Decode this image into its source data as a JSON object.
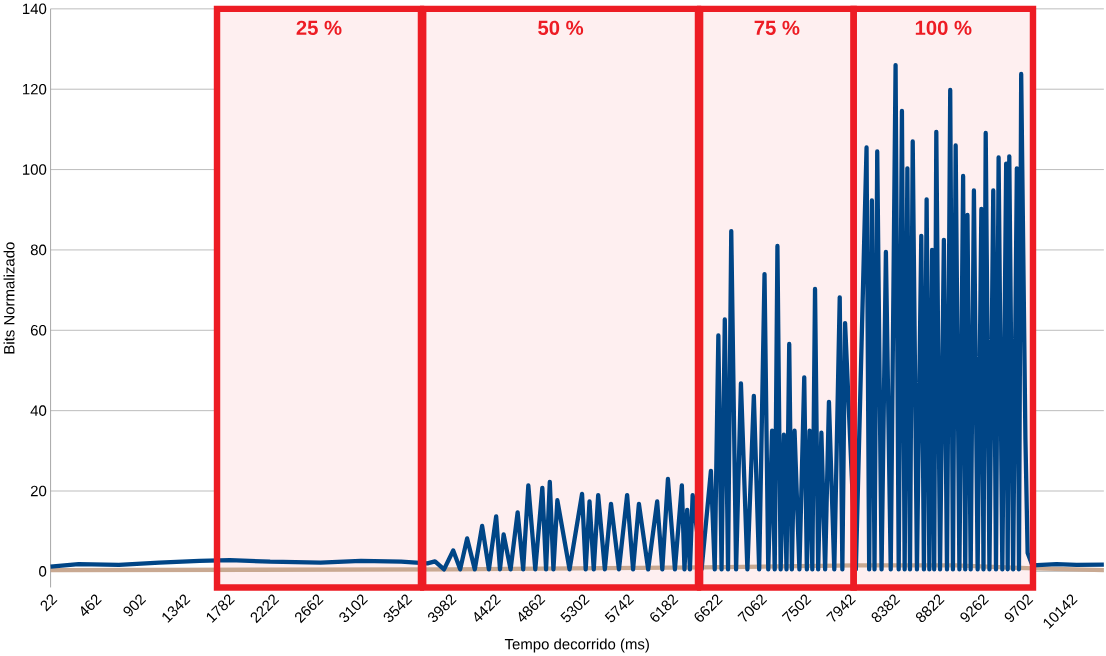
{
  "chart_data": {
    "type": "line",
    "xlabel": "Tempo decorrido (ms)",
    "ylabel": "Bits Normalizado",
    "xlim": [
      22,
      10470
    ],
    "ylim": [
      -4,
      140
    ],
    "xticks": [
      22,
      462,
      902,
      1342,
      1782,
      2222,
      2662,
      3102,
      3542,
      3982,
      4422,
      4862,
      5302,
      5742,
      6182,
      6622,
      7062,
      7502,
      7942,
      8382,
      8822,
      9262,
      9702,
      10142
    ],
    "yticks": [
      0,
      20,
      40,
      60,
      80,
      100,
      120,
      140
    ],
    "grid": "y",
    "marker": "none",
    "line_style": "solid",
    "series": [
      {
        "color": "#c9a992",
        "x": [
          22,
          4000,
          6500,
          8000,
          9000,
          9700,
          10470
        ],
        "values": [
          0.3,
          0.5,
          1,
          1.5,
          1.5,
          0.8,
          0.3
        ]
      },
      {
        "color": "#004586",
        "x": [
          22,
          300,
          700,
          1100,
          1500,
          1800,
          2200,
          2700,
          3100,
          3500,
          3760,
          3835,
          3925,
          4016,
          4085,
          4154,
          4230,
          4303,
          4370,
          4442,
          4480,
          4516,
          4585,
          4655,
          4710,
          4761,
          4830,
          4900,
          4937,
          4974,
          5010,
          5049,
          5170,
          5294,
          5330,
          5368,
          5410,
          5454,
          5520,
          5581,
          5660,
          5741,
          5800,
          5858,
          5950,
          6039,
          6090,
          6146,
          6215,
          6284,
          6310,
          6337,
          6364,
          6391,
          6480,
          6572,
          6610,
          6646,
          6678,
          6710,
          6742,
          6774,
          6822,
          6870,
          6934,
          6998,
          7051,
          7104,
          7141,
          7179,
          7205,
          7232,
          7264,
          7296,
          7322,
          7349,
          7375,
          7402,
          7450,
          7498,
          7524,
          7551,
          7578,
          7605,
          7636,
          7668,
          7705,
          7743,
          7796,
          7850,
          7876,
          7903,
          8010,
          8116,
          8142,
          8169,
          8195,
          8222,
          8265,
          8308,
          8356,
          8404,
          8435,
          8467,
          8494,
          8521,
          8547,
          8574,
          8616,
          8659,
          8685,
          8712,
          8739,
          8766,
          8787,
          8808,
          8845,
          8883,
          8914,
          8946,
          8973,
          9000,
          9037,
          9074,
          9095,
          9117,
          9149,
          9181,
          9218,
          9255,
          9276,
          9298,
          9335,
          9373,
          9400,
          9426,
          9463,
          9501,
          9516,
          9532,
          9570,
          9607,
          9628,
          9650,
          9692,
          9714,
          9760,
          10000,
          10200,
          10470
        ],
        "values": [
          1.2,
          1.8,
          1.6,
          2.2,
          2.6,
          2.8,
          2.4,
          2.2,
          2.6,
          2.4,
          2.0,
          2.5,
          0.5,
          5.2,
          0.5,
          8.2,
          0.5,
          11.3,
          0.5,
          13.7,
          0.5,
          9.2,
          0.5,
          14.7,
          0.5,
          21.4,
          0.5,
          20.8,
          0.5,
          22.3,
          0.5,
          17.7,
          0.5,
          19.3,
          0.5,
          17.4,
          0.5,
          19,
          0.5,
          16.8,
          0.5,
          19,
          0.5,
          16.8,
          0.5,
          17.4,
          0.5,
          23,
          0.5,
          21.4,
          0.5,
          15.3,
          0.5,
          19,
          0.5,
          25,
          0.5,
          58.7,
          0.5,
          62.7,
          0.5,
          84.7,
          0.5,
          46.8,
          0.5,
          43.7,
          0.5,
          74,
          0.5,
          35,
          0.5,
          81,
          0.5,
          34,
          0.5,
          56.6,
          0.5,
          35,
          0.5,
          48.3,
          0.5,
          35,
          0.5,
          70.3,
          0.5,
          34.5,
          0.5,
          42.2,
          0.5,
          68.2,
          0.5,
          61.8,
          0.5,
          105.5,
          0.5,
          92.3,
          0.5,
          104.5,
          0.5,
          79.5,
          0.5,
          126,
          0.5,
          114.6,
          0.5,
          100.3,
          0.5,
          107,
          0.5,
          83.5,
          0.5,
          92.6,
          0.5,
          80,
          0.5,
          109.4,
          0.5,
          82.5,
          0.5,
          119.8,
          0.5,
          106,
          0.5,
          98.4,
          0.5,
          88.7,
          0.5,
          94.8,
          0.5,
          90.2,
          0.5,
          109.1,
          0.5,
          94.8,
          0.5,
          103,
          0.5,
          101.5,
          0.5,
          103.3,
          0.5,
          100.3,
          0.5,
          123.8,
          33,
          4.6,
          1.5,
          1.8,
          1.6,
          1.7
        ]
      }
    ],
    "bands": [
      {
        "axis": "x",
        "from": 1673,
        "to": 3696,
        "label": "25 %"
      },
      {
        "axis": "x",
        "from": 3718,
        "to": 6444,
        "label": "50 %"
      },
      {
        "axis": "x",
        "from": 6465,
        "to": 7988,
        "label": "75 %"
      },
      {
        "axis": "x",
        "from": 7988,
        "to": 9767,
        "label": "100 %"
      }
    ]
  }
}
